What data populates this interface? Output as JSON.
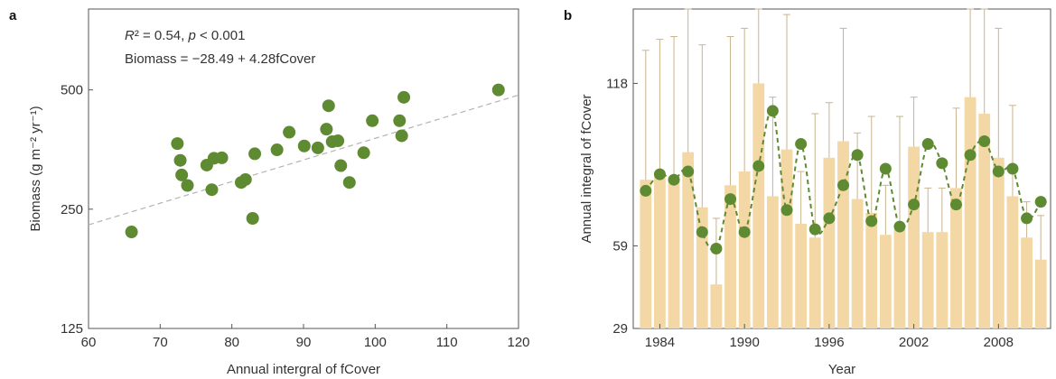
{
  "colors": {
    "marker": "#5e8a31",
    "bar": "#f3d7a4",
    "errorbar": "#c9b48e",
    "fit_line": "#b3b3b3",
    "axis": "#555555"
  },
  "chart_data": [
    {
      "panel": "a",
      "type": "scatter",
      "xlabel": "Annual intergral of fCover",
      "ylabel": "Biomass (g m⁻² yr⁻¹)",
      "xlim": [
        60,
        120
      ],
      "ylim": [
        125,
        800
      ],
      "yscale": "log",
      "xticks": [
        60,
        70,
        80,
        90,
        100,
        110,
        120
      ],
      "yticks": [
        125,
        250,
        500
      ],
      "annotations": [
        "R² = 0.54, p < 0.001",
        "Biomass = −28.49 + 4.28fCover"
      ],
      "fit": {
        "intercept": -28.49,
        "slope": 4.28,
        "style": "dashed"
      },
      "grid": false,
      "points": [
        {
          "x": 66.0,
          "y": 219
        },
        {
          "x": 72.4,
          "y": 366
        },
        {
          "x": 72.8,
          "y": 332
        },
        {
          "x": 73.0,
          "y": 305
        },
        {
          "x": 73.8,
          "y": 287
        },
        {
          "x": 76.5,
          "y": 323
        },
        {
          "x": 77.2,
          "y": 280
        },
        {
          "x": 77.5,
          "y": 336
        },
        {
          "x": 78.6,
          "y": 337
        },
        {
          "x": 81.3,
          "y": 292
        },
        {
          "x": 81.9,
          "y": 297
        },
        {
          "x": 82.9,
          "y": 237
        },
        {
          "x": 83.2,
          "y": 345
        },
        {
          "x": 86.3,
          "y": 353
        },
        {
          "x": 88.0,
          "y": 391
        },
        {
          "x": 90.1,
          "y": 361
        },
        {
          "x": 92.0,
          "y": 357
        },
        {
          "x": 93.2,
          "y": 398
        },
        {
          "x": 93.5,
          "y": 456
        },
        {
          "x": 94.0,
          "y": 370
        },
        {
          "x": 94.8,
          "y": 372
        },
        {
          "x": 95.2,
          "y": 322
        },
        {
          "x": 96.4,
          "y": 292
        },
        {
          "x": 98.4,
          "y": 347
        },
        {
          "x": 99.6,
          "y": 418
        },
        {
          "x": 103.4,
          "y": 418
        },
        {
          "x": 103.7,
          "y": 383
        },
        {
          "x": 104.0,
          "y": 479
        },
        {
          "x": 117.2,
          "y": 500
        }
      ]
    },
    {
      "panel": "b",
      "type": "bar",
      "xlabel": "Year",
      "ylabel": "Annual integral of fCover",
      "ylim": [
        29,
        145
      ],
      "yticks": [
        29,
        59,
        118
      ],
      "xticks": [
        1984,
        1990,
        1996,
        2002,
        2008
      ],
      "grid": false,
      "series": [
        {
          "role": "bars_with_errorbars",
          "x": [
            1983,
            1984,
            1985,
            1986,
            1987,
            1988,
            1989,
            1990,
            1991,
            1992,
            1993,
            1994,
            1995,
            1996,
            1997,
            1998,
            1999,
            2000,
            2001,
            2002,
            2003,
            2004,
            2005,
            2006,
            2007,
            2008,
            2009,
            2010,
            2011
          ],
          "values": [
            83,
            84,
            84,
            93,
            73,
            45,
            81,
            86,
            118,
            77,
            94,
            67,
            62,
            91,
            97,
            76,
            71,
            63,
            65,
            95,
            64,
            64,
            80,
            113,
            107,
            91,
            77,
            62,
            54
          ],
          "error_top": [
            130,
            134,
            135,
            145,
            132,
            69,
            135,
            138,
            170,
            113,
            143,
            86,
            107,
            111,
            138,
            100,
            106,
            81,
            106,
            113,
            80,
            80,
            109,
            167,
            165,
            138,
            110,
            75,
            70
          ]
        },
        {
          "role": "points_dashed_line",
          "x": [
            1983,
            1984,
            1985,
            1986,
            1987,
            1988,
            1989,
            1990,
            1991,
            1992,
            1993,
            1994,
            1995,
            1996,
            1997,
            1998,
            1999,
            2000,
            2001,
            2002,
            2003,
            2004,
            2005,
            2006,
            2007,
            2008,
            2009,
            2010,
            2011
          ],
          "values": [
            79,
            85,
            83,
            86,
            64,
            58,
            76,
            64,
            88,
            108,
            72,
            96,
            65,
            69,
            81,
            92,
            68,
            87,
            66,
            74,
            96,
            89,
            74,
            92,
            97,
            86,
            87,
            69,
            75
          ]
        }
      ]
    }
  ]
}
